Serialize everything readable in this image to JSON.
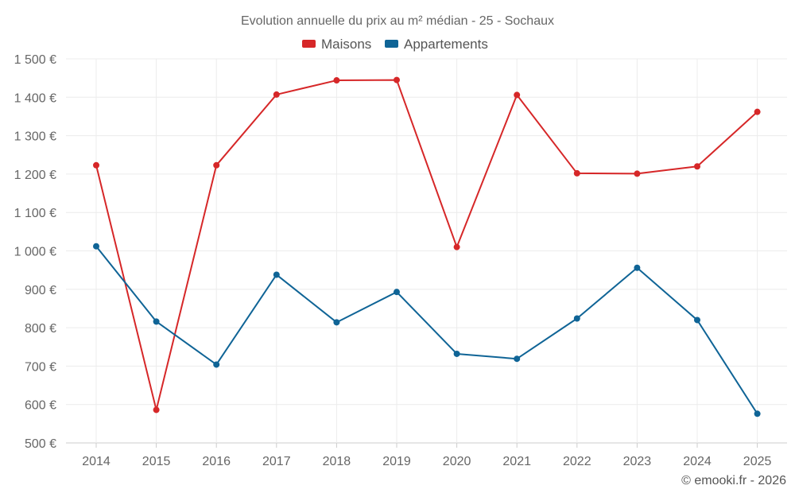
{
  "chart_data": {
    "type": "line",
    "title": "Evolution annuelle du prix au m² médian - 25 - Sochaux",
    "categories": [
      "2014",
      "2015",
      "2016",
      "2017",
      "2018",
      "2019",
      "2020",
      "2021",
      "2022",
      "2023",
      "2024",
      "2025"
    ],
    "series": [
      {
        "name": "Maisons",
        "color": "#d62728",
        "values": [
          1223,
          586,
          1223,
          1407,
          1444,
          1445,
          1010,
          1406,
          1202,
          1201,
          1220,
          1362
        ]
      },
      {
        "name": "Appartements",
        "color": "#0f6496",
        "values": [
          1012,
          816,
          704,
          938,
          814,
          893,
          732,
          719,
          824,
          956,
          820,
          576
        ]
      }
    ],
    "ylim": [
      500,
      1500
    ],
    "yticks": [
      500,
      600,
      700,
      800,
      900,
      1000,
      1100,
      1200,
      1300,
      1400,
      1500
    ],
    "ytick_labels": [
      "500 €",
      "600 €",
      "700 €",
      "800 €",
      "900 €",
      "1 000 €",
      "1 100 €",
      "1 200 €",
      "1 300 €",
      "1 400 €",
      "1 500 €"
    ],
    "xlabel": "",
    "ylabel": "",
    "grid": true,
    "legend_position": "top-center"
  },
  "credit": "© emooki.fr - 2026"
}
